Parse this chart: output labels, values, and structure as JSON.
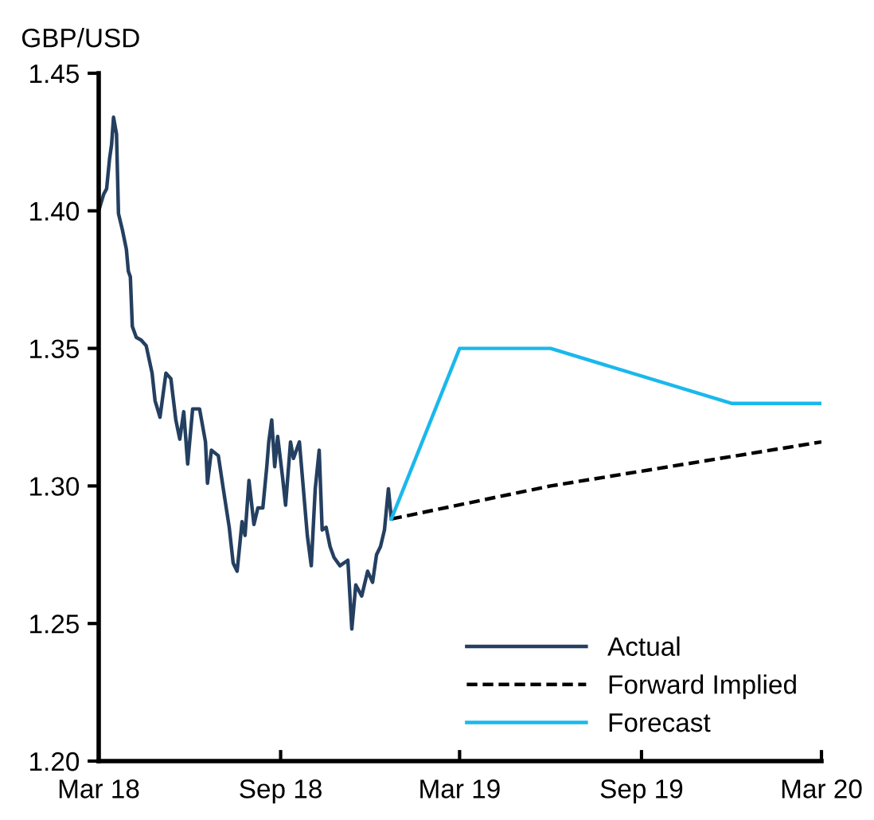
{
  "chart_data": {
    "type": "line",
    "ylabel": "GBP/USD",
    "xlim": [
      "2018-03-01",
      "2020-03-01"
    ],
    "xticks": [
      {
        "value": "2018-03-01",
        "label": "Mar 18"
      },
      {
        "value": "2018-09-01",
        "label": "Sep 18"
      },
      {
        "value": "2019-03-01",
        "label": "Mar 19"
      },
      {
        "value": "2019-09-01",
        "label": "Sep 19"
      },
      {
        "value": "2020-03-01",
        "label": "Mar 20"
      }
    ],
    "ylim": [
      1.2,
      1.45
    ],
    "yticks": [
      {
        "value": 1.2,
        "label": "1.20"
      },
      {
        "value": 1.25,
        "label": "1.25"
      },
      {
        "value": 1.3,
        "label": "1.30"
      },
      {
        "value": 1.35,
        "label": "1.35"
      },
      {
        "value": 1.4,
        "label": "1.40"
      },
      {
        "value": 1.45,
        "label": "1.45"
      }
    ],
    "grid": false,
    "legend": "bottom right",
    "marker": "none",
    "series": [
      {
        "name": "Actual",
        "color": "#243f60",
        "line_style": "solid",
        "x": [
          "2018-03-01",
          "2018-03-06",
          "2018-03-09",
          "2018-03-12",
          "2018-03-14",
          "2018-03-16",
          "2018-03-19",
          "2018-03-21",
          "2018-03-25",
          "2018-03-29",
          "2018-03-31",
          "2018-04-02",
          "2018-04-04",
          "2018-04-08",
          "2018-04-13",
          "2018-04-18",
          "2018-04-24",
          "2018-04-27",
          "2018-05-02",
          "2018-05-08",
          "2018-05-13",
          "2018-05-18",
          "2018-05-22",
          "2018-05-26",
          "2018-05-30",
          "2018-06-04",
          "2018-06-11",
          "2018-06-17",
          "2018-06-19",
          "2018-06-23",
          "2018-06-30",
          "2018-07-05",
          "2018-07-11",
          "2018-07-15",
          "2018-07-19",
          "2018-07-24",
          "2018-07-27",
          "2018-07-31",
          "2018-08-05",
          "2018-08-09",
          "2018-08-14",
          "2018-08-18",
          "2018-08-20",
          "2018-08-23",
          "2018-08-26",
          "2018-08-29",
          "2018-09-03",
          "2018-09-06",
          "2018-09-11",
          "2018-09-14",
          "2018-09-20",
          "2018-09-24",
          "2018-09-28",
          "2018-10-02",
          "2018-10-06",
          "2018-10-10",
          "2018-10-13",
          "2018-10-17",
          "2018-10-21",
          "2018-10-25",
          "2018-10-31",
          "2018-11-08",
          "2018-11-12",
          "2018-11-16",
          "2018-11-22",
          "2018-11-28",
          "2018-12-03",
          "2018-12-07",
          "2018-12-11",
          "2018-12-15",
          "2018-12-19",
          "2018-12-22"
        ],
        "values": [
          1.4,
          1.406,
          1.408,
          1.419,
          1.424,
          1.434,
          1.428,
          1.399,
          1.393,
          1.386,
          1.378,
          1.376,
          1.358,
          1.354,
          1.353,
          1.351,
          1.341,
          1.331,
          1.325,
          1.341,
          1.339,
          1.324,
          1.317,
          1.327,
          1.308,
          1.328,
          1.328,
          1.316,
          1.301,
          1.313,
          1.311,
          1.299,
          1.285,
          1.272,
          1.269,
          1.287,
          1.282,
          1.302,
          1.286,
          1.292,
          1.292,
          1.307,
          1.316,
          1.324,
          1.307,
          1.318,
          1.303,
          1.293,
          1.316,
          1.31,
          1.316,
          1.299,
          1.282,
          1.271,
          1.299,
          1.313,
          1.284,
          1.285,
          1.278,
          1.274,
          1.271,
          1.273,
          1.248,
          1.264,
          1.26,
          1.269,
          1.265,
          1.275,
          1.278,
          1.284,
          1.299,
          1.288
        ]
      },
      {
        "name": "Forward Implied",
        "color": "#000000",
        "line_style": "dashed",
        "x": [
          "2018-12-22",
          "2019-06-01",
          "2020-03-01"
        ],
        "values": [
          1.288,
          1.3,
          1.316
        ]
      },
      {
        "name": "Forecast",
        "color": "#1ab8ec",
        "line_style": "solid",
        "x": [
          "2018-12-22",
          "2019-03-01",
          "2019-06-01",
          "2019-12-01",
          "2020-03-01"
        ],
        "values": [
          1.288,
          1.35,
          1.35,
          1.33,
          1.33
        ]
      }
    ]
  }
}
